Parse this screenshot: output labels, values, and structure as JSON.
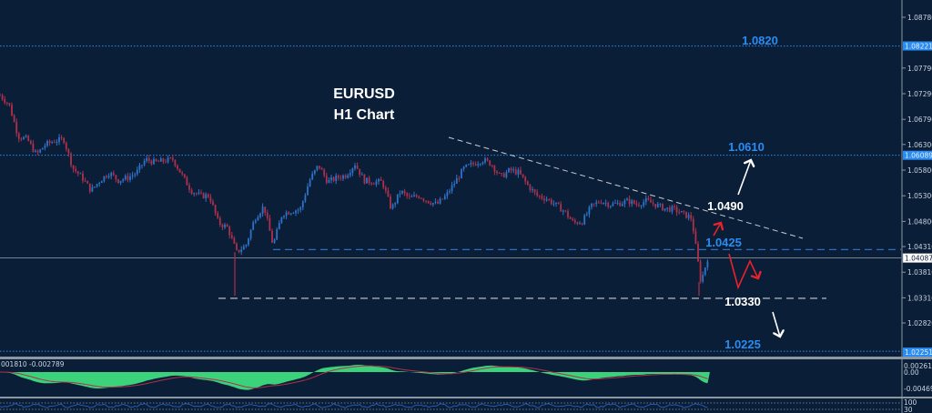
{
  "chart_data": {
    "type": "candlestick",
    "title": "EURUSD",
    "subtitle": "H1 Chart",
    "ylim": [
      1.0225,
      1.0895
    ],
    "y_ticks": [
      "1.08780",
      "1.07790",
      "1.07290",
      "1.06790",
      "1.06300",
      "1.05800",
      "1.05300",
      "1.04800",
      "1.04310",
      "1.03810",
      "1.03310",
      "1.02820"
    ],
    "close_series": [
      1.0726,
      1.0708,
      1.0646,
      1.064,
      1.061,
      1.063,
      1.0637,
      1.064,
      1.0584,
      1.0566,
      1.054,
      1.056,
      1.0575,
      1.056,
      1.0565,
      1.0575,
      1.0601,
      1.0595,
      1.0598,
      1.0601,
      1.057,
      1.054,
      1.053,
      1.053,
      1.0477,
      1.0468,
      1.042,
      1.0433,
      1.0486,
      1.051,
      1.0433,
      1.0495,
      1.05,
      1.0504,
      1.056,
      1.059,
      1.0557,
      1.0565,
      1.057,
      1.0592,
      1.056,
      1.0557,
      1.0557,
      1.0504,
      1.0539,
      1.0525,
      1.053,
      1.052,
      1.0513,
      1.053,
      1.0557,
      1.0584,
      1.0592,
      1.06,
      1.0592,
      1.0566,
      1.058,
      1.0575,
      1.055,
      1.053,
      1.0525,
      1.0513,
      1.05,
      1.0477,
      1.048,
      1.051,
      1.052,
      1.0513,
      1.0515,
      1.052,
      1.0513,
      1.052,
      1.0513,
      1.0505,
      1.0504,
      1.0495,
      1.0486,
      1.0362,
      1.0424
    ],
    "lows": [
      {
        "index": 26,
        "value": 1.0335
      },
      {
        "index": 77,
        "value": 1.0335
      }
    ],
    "price_tags": [
      {
        "value": "1.08221",
        "style": "blue"
      },
      {
        "value": "1.06089",
        "style": "blue"
      },
      {
        "value": "1.04087",
        "style": "current"
      },
      {
        "value": "1.02251",
        "style": "blue"
      }
    ],
    "levels": [
      {
        "label": "1.0820",
        "price": 1.0822,
        "style": "dotted-blue"
      },
      {
        "label": "1.0610",
        "price": 1.0609,
        "style": "dotted-blue"
      },
      {
        "label": "1.0490",
        "price": 1.049,
        "style": "trendline"
      },
      {
        "label": "1.0425",
        "price": 1.0425,
        "style": "dashed-blue"
      },
      {
        "label": "1.0330",
        "price": 1.033,
        "style": "dashed-white"
      },
      {
        "label": "1.0225",
        "price": 1.0225,
        "style": "dotted-blue"
      }
    ],
    "current_price": 1.04087,
    "macd": {
      "label": "001810 -0.002789",
      "ticks": [
        "0.002616",
        "0.00",
        "-0.004694"
      ]
    },
    "oscillator": {
      "ticks": [
        "100",
        "30"
      ]
    },
    "colors": {
      "background": "#0a1e38",
      "bull": "#2f73c8",
      "bear": "#b0304a",
      "level": "#2a8cf0",
      "macd": "#3ad27a",
      "signal": "#b0304a",
      "arrow_up": "#ffffff",
      "arrow_scenario": "#e8222a"
    }
  }
}
